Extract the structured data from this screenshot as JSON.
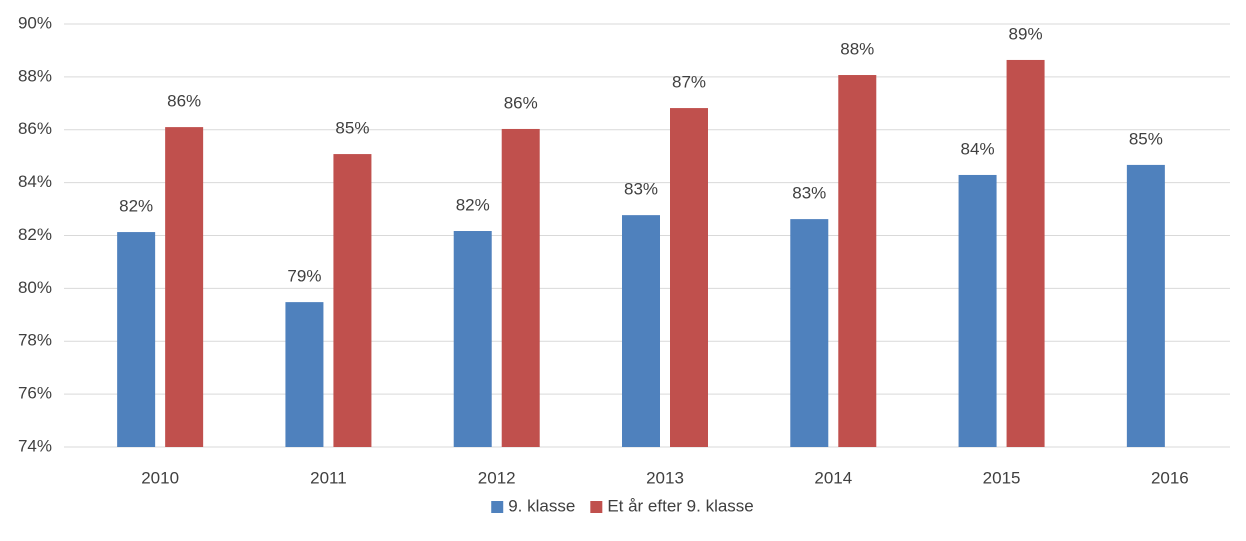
{
  "chart_data": {
    "type": "bar",
    "categories": [
      "2010",
      "2011",
      "2012",
      "2013",
      "2014",
      "2015",
      "2016"
    ],
    "series": [
      {
        "name": "9. klasse",
        "color": "#4f81bd",
        "values": [
          82.13,
          79.48,
          82.17,
          82.77,
          82.62,
          84.29,
          84.67
        ],
        "value_labels": [
          "82%",
          "79%",
          "82%",
          "83%",
          "83%",
          "84%",
          "85%"
        ]
      },
      {
        "name": "Et år efter 9. klasse",
        "color": "#c0504d",
        "values": [
          86.1,
          85.08,
          86.03,
          86.82,
          88.07,
          88.64,
          null
        ],
        "value_labels": [
          "86%",
          "85%",
          "86%",
          "87%",
          "88%",
          "89%",
          null
        ]
      }
    ],
    "ylim": [
      74,
      90
    ],
    "yticks": [
      {
        "value": 74,
        "label": "74%"
      },
      {
        "value": 76,
        "label": "76%"
      },
      {
        "value": 78,
        "label": "78%"
      },
      {
        "value": 80,
        "label": "80%"
      },
      {
        "value": 82,
        "label": "82%"
      },
      {
        "value": 84,
        "label": "84%"
      },
      {
        "value": 86,
        "label": "86%"
      },
      {
        "value": 88,
        "label": "88%"
      },
      {
        "value": 90,
        "label": "90%"
      }
    ],
    "grid": true,
    "legend": "bottom"
  }
}
